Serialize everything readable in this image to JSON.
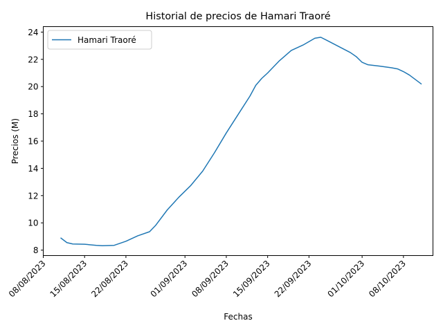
{
  "chart_data": {
    "type": "line",
    "title": "Historial de precios de Hamari Traoré",
    "xlabel": "Fechas",
    "ylabel": "Precios (M)",
    "ylim": [
      7.6,
      24.4
    ],
    "xlim": [
      "2023-08-08",
      "2023-10-13"
    ],
    "x_ticks": [
      "2023-08-08",
      "2023-08-15",
      "2023-08-22",
      "2023-09-01",
      "2023-09-08",
      "2023-09-15",
      "2023-09-22",
      "2023-10-01",
      "2023-10-08"
    ],
    "x_tick_labels": [
      "08/08/2023",
      "15/08/2023",
      "22/08/2023",
      "01/09/2023",
      "08/09/2023",
      "15/09/2023",
      "22/09/2023",
      "01/10/2023",
      "08/10/2023"
    ],
    "y_ticks": [
      8,
      10,
      12,
      14,
      16,
      18,
      20,
      22,
      24
    ],
    "y_tick_labels": [
      "8",
      "10",
      "12",
      "14",
      "16",
      "18",
      "20",
      "22",
      "24"
    ],
    "grid": false,
    "legend": "upper-left",
    "series": [
      {
        "name": "Hamari Traoré",
        "color": "#1f77b4",
        "x": [
          "2023-08-11",
          "2023-08-12",
          "2023-08-13",
          "2023-08-15",
          "2023-08-17",
          "2023-08-18",
          "2023-08-20",
          "2023-08-22",
          "2023-08-24",
          "2023-08-26",
          "2023-08-27",
          "2023-08-29",
          "2023-08-31",
          "2023-09-02",
          "2023-09-04",
          "2023-09-06",
          "2023-09-08",
          "2023-09-10",
          "2023-09-12",
          "2023-09-13",
          "2023-09-14",
          "2023-09-15",
          "2023-09-17",
          "2023-09-19",
          "2023-09-21",
          "2023-09-23",
          "2023-09-24",
          "2023-09-25",
          "2023-09-27",
          "2023-09-29",
          "2023-09-30",
          "2023-10-01",
          "2023-10-02",
          "2023-10-04",
          "2023-10-06",
          "2023-10-07",
          "2023-10-08",
          "2023-10-09",
          "2023-10-11"
        ],
        "y": [
          8.88,
          8.55,
          8.45,
          8.43,
          8.35,
          8.32,
          8.35,
          8.65,
          9.05,
          9.35,
          9.8,
          10.95,
          11.9,
          12.75,
          13.8,
          15.15,
          16.6,
          17.95,
          19.3,
          20.1,
          20.6,
          21.0,
          21.9,
          22.65,
          23.05,
          23.55,
          23.62,
          23.4,
          22.95,
          22.5,
          22.2,
          21.78,
          21.6,
          21.5,
          21.38,
          21.3,
          21.1,
          20.85,
          20.2
        ]
      }
    ]
  }
}
